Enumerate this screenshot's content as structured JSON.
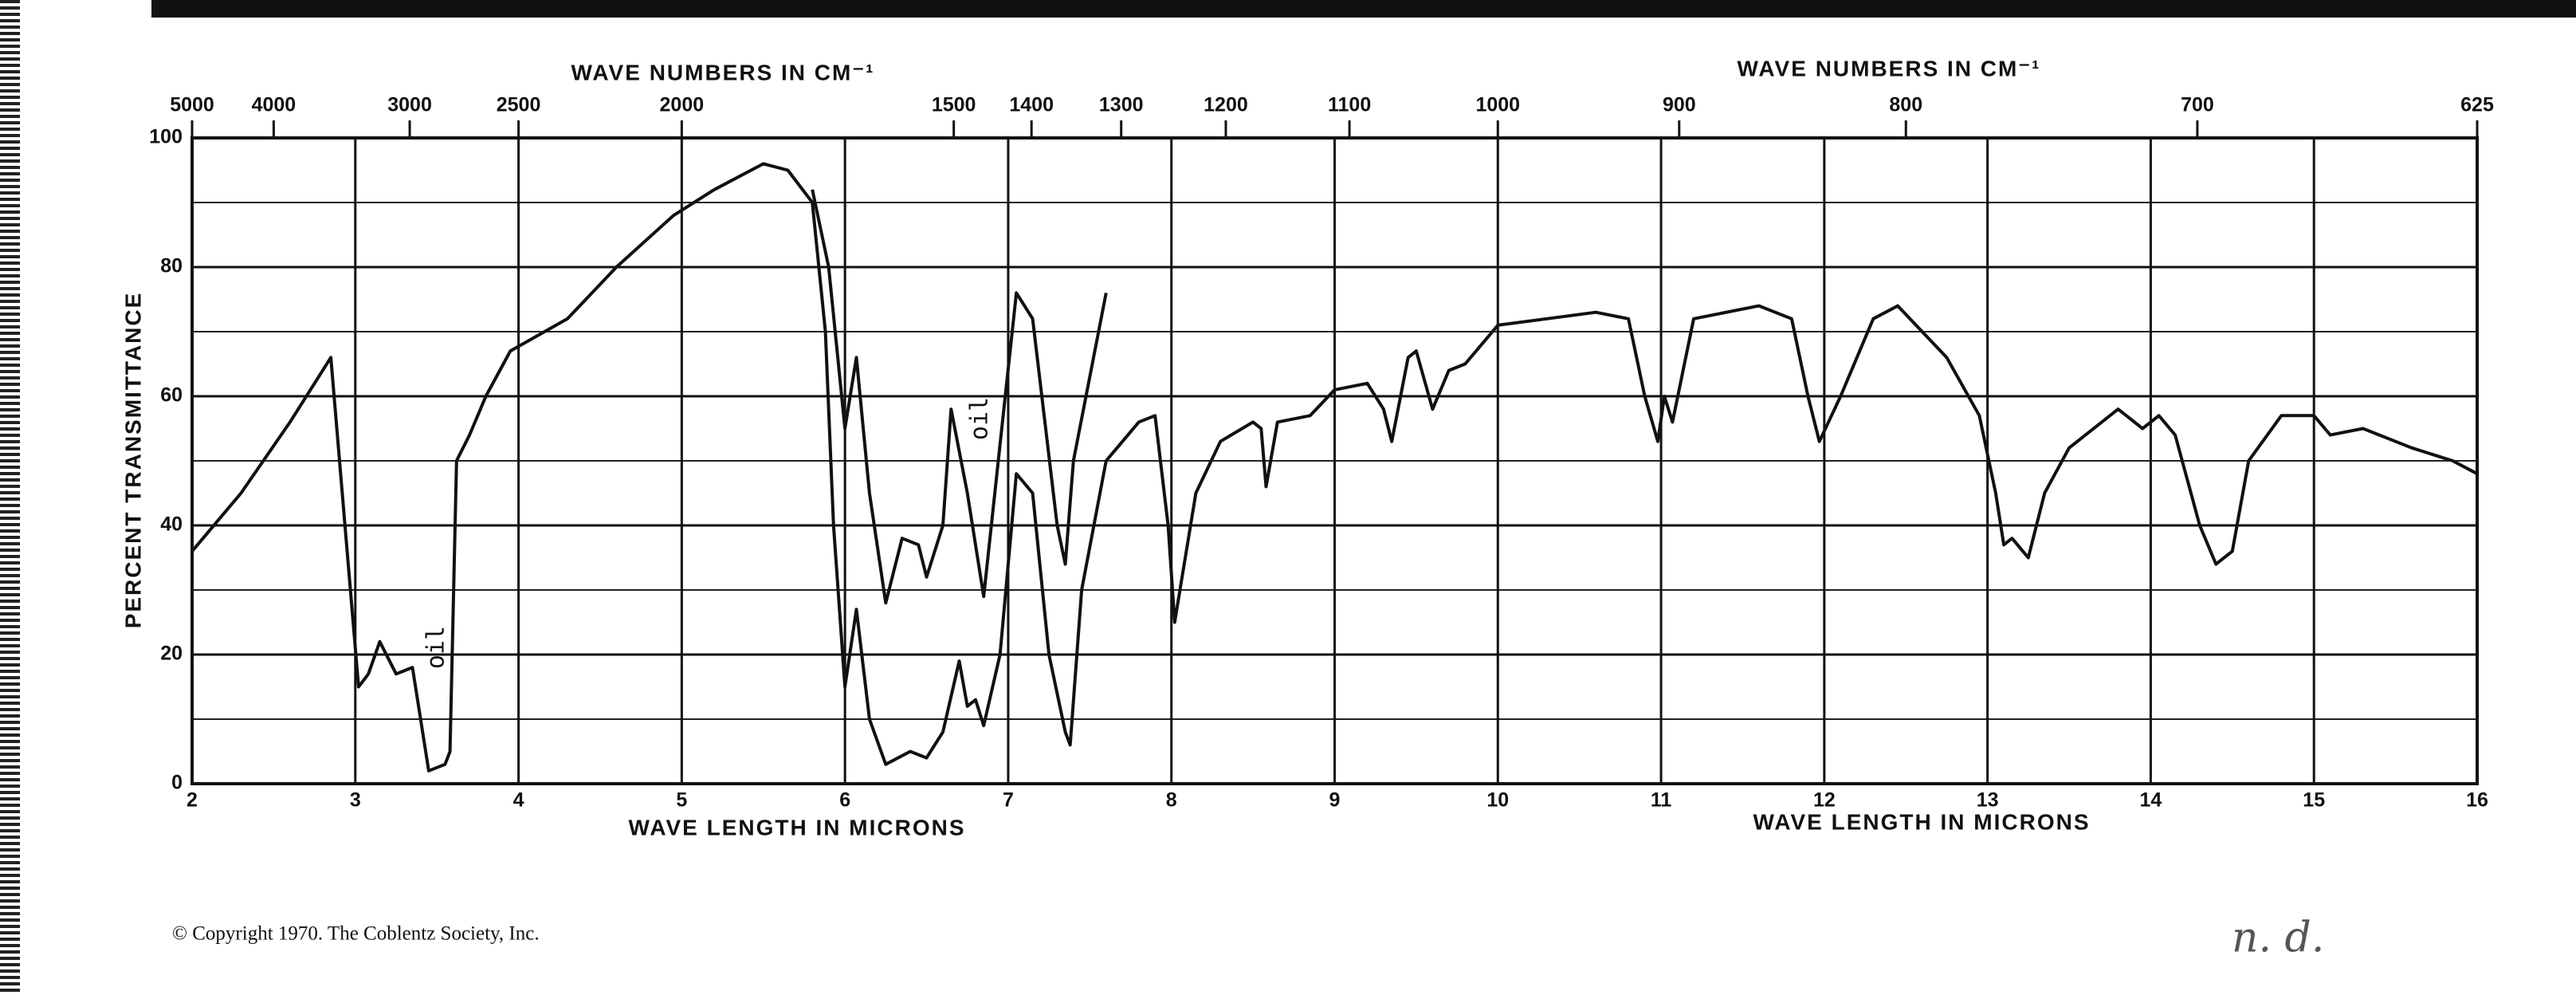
{
  "chart_data": {
    "type": "line",
    "top_axis_label": "WAVE NUMBERS IN CM⁻¹",
    "top_axis_label_2": "WAVE NUMBERS IN CM⁻¹",
    "x_axis_label": "WAVE LENGTH IN MICRONS",
    "x_axis_label_2": "WAVE LENGTH IN MICRONS",
    "y_axis_label": "PERCENT TRANSMITTANCE",
    "annotations": [
      "oil",
      "oil"
    ],
    "copyright": "© Copyright 1970. The Coblentz Society, Inc.",
    "handwritten_note": "n. d.",
    "xlim": [
      2,
      16
    ],
    "ylim": [
      0,
      100
    ],
    "xticks": [
      2,
      3,
      4,
      5,
      6,
      7,
      8,
      9,
      10,
      11,
      12,
      13,
      14,
      15,
      16
    ],
    "yticks": [
      0,
      20,
      40,
      60,
      80,
      100
    ],
    "yminor": [
      10,
      30,
      50,
      70,
      90
    ],
    "x2ticks": [
      5000,
      4000,
      3000,
      2500,
      2000,
      1500,
      1400,
      1300,
      1200,
      1100,
      1000,
      900,
      800,
      700,
      625
    ],
    "grid": true,
    "series": [
      {
        "color": "#111111",
        "x": [
          2.0,
          2.3,
          2.6,
          2.85,
          2.92,
          3.02,
          3.08,
          3.15,
          3.25,
          3.35,
          3.4,
          3.45,
          3.55,
          3.58,
          3.62,
          3.7,
          3.8,
          3.95,
          4.3,
          4.6,
          4.95,
          5.2,
          5.5,
          5.65,
          5.8,
          5.88,
          5.93,
          6.0,
          6.07,
          6.15,
          6.25,
          6.4,
          6.5,
          6.6,
          6.7,
          6.75,
          6.8,
          6.85,
          6.95,
          7.05,
          7.15,
          7.25,
          7.35,
          7.38,
          7.45,
          7.6,
          7.8,
          7.9,
          7.98,
          8.02,
          8.15,
          8.3,
          8.5,
          8.55,
          8.58,
          8.65,
          8.85,
          9.0,
          9.2,
          9.3,
          9.35,
          9.45,
          9.5,
          9.6,
          9.7,
          9.8,
          10.0,
          10.3,
          10.6,
          10.8,
          10.9,
          10.98,
          11.02,
          11.07,
          11.2,
          11.6,
          11.8,
          11.9,
          11.97,
          12.1,
          12.3,
          12.45,
          12.6,
          12.75,
          12.95,
          13.05,
          13.1,
          13.15,
          13.25,
          13.35,
          13.5,
          13.7,
          13.8,
          13.95,
          14.05,
          14.15,
          14.3,
          14.4,
          14.5,
          14.6,
          14.8,
          15.0,
          15.1,
          15.3,
          15.6,
          15.85,
          16.0
        ],
        "values": [
          36,
          45,
          56,
          66,
          45,
          15,
          17,
          22,
          17,
          18,
          10,
          2,
          3,
          5,
          50,
          54,
          60,
          67,
          72,
          80,
          88,
          92,
          96,
          95,
          90,
          70,
          40,
          15,
          27,
          10,
          3,
          5,
          4,
          8,
          19,
          12,
          13,
          9,
          20,
          48,
          45,
          20,
          8,
          6,
          30,
          50,
          56,
          57,
          40,
          25,
          45,
          53,
          56,
          55,
          46,
          56,
          57,
          61,
          62,
          58,
          53,
          66,
          67,
          58,
          64,
          65,
          71,
          72,
          73,
          72,
          60,
          53,
          60,
          56,
          72,
          74,
          72,
          60,
          53,
          60,
          72,
          74,
          70,
          66,
          57,
          45,
          37,
          38,
          35,
          45,
          52,
          56,
          58,
          55,
          57,
          54,
          40,
          34,
          36,
          50,
          57,
          57,
          54,
          55,
          52,
          50,
          48
        ]
      },
      {
        "color": "#111111",
        "x": [
          5.8,
          5.9,
          6.0,
          6.07,
          6.15,
          6.25,
          6.35,
          6.45,
          6.5,
          6.6,
          6.65,
          6.75,
          6.85,
          7.05,
          7.15,
          7.3,
          7.35,
          7.4,
          7.6
        ],
        "values": [
          92,
          80,
          55,
          66,
          45,
          28,
          38,
          37,
          32,
          40,
          58,
          45,
          29,
          76,
          72,
          40,
          34,
          50,
          76
        ]
      }
    ]
  }
}
